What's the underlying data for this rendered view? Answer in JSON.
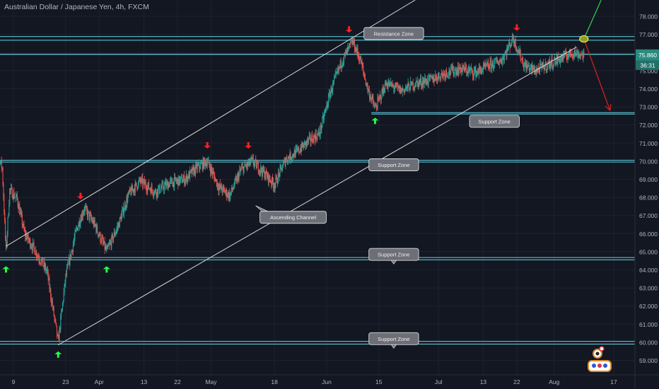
{
  "symbol_title": "Australian Dollar / Japanese Yen, 4h, FXCM",
  "colors": {
    "background": "#131722",
    "grid": "#1e2230",
    "axis_text": "#b2b5be",
    "up": "#26a69a",
    "down": "#ef5350",
    "zone_line": "#5fd7e8",
    "trend_line": "#d8d8d8",
    "up_arrow": "#22ff44",
    "down_arrow": "#ff2020",
    "projection_up": "#34d24a",
    "projection_down": "#e02020",
    "callout_fill": "#6d6f78",
    "price_badge": "#2a8a7e",
    "timer_badge": "#22706a"
  },
  "chart_data": {
    "type": "candlestick",
    "x_axis": {
      "ticks": [
        {
          "label": "9",
          "date": "2023-03-09"
        },
        {
          "label": "23",
          "date": "2023-03-23"
        },
        {
          "label": "Apr",
          "date": "2023-04-01"
        },
        {
          "label": "13",
          "date": "2023-04-13"
        },
        {
          "label": "22",
          "date": "2023-04-22"
        },
        {
          "label": "May",
          "date": "2023-05-01"
        },
        {
          "label": "18",
          "date": "2023-05-18"
        },
        {
          "label": "Jun",
          "date": "2023-06-01"
        },
        {
          "label": "15",
          "date": "2023-06-15"
        },
        {
          "label": "Jul",
          "date": "2023-07-01"
        },
        {
          "label": "13",
          "date": "2023-07-13"
        },
        {
          "label": "22",
          "date": "2023-07-22"
        },
        {
          "label": "Aug",
          "date": "2023-08-01"
        },
        {
          "label": "17",
          "date": "2023-08-17"
        }
      ]
    },
    "y_axis": {
      "range": [
        58.2,
        78.9
      ],
      "ticks": [
        "59.000",
        "60.000",
        "61.000",
        "62.000",
        "63.000",
        "64.000",
        "65.000",
        "66.000",
        "67.000",
        "68.000",
        "69.000",
        "70.000",
        "71.000",
        "72.000",
        "73.000",
        "74.000",
        "75.000",
        "76.000",
        "77.000",
        "78.000"
      ]
    },
    "last_price": "75.860",
    "countdown": "36:31",
    "price_path": [
      [
        "2023-03-03",
        71.4
      ],
      [
        "2023-03-05",
        70.3
      ],
      [
        "2023-03-06",
        69.6
      ],
      [
        "2023-03-07",
        65.0
      ],
      [
        "2023-03-08",
        68.4
      ],
      [
        "2023-03-10",
        67.9
      ],
      [
        "2023-03-12",
        66.0
      ],
      [
        "2023-03-15",
        65.0
      ],
      [
        "2023-03-18",
        63.9
      ],
      [
        "2023-03-20",
        61.3
      ],
      [
        "2023-03-21",
        60.0
      ],
      [
        "2023-03-23",
        63.6
      ],
      [
        "2023-03-26",
        66.3
      ],
      [
        "2023-03-28",
        67.4
      ],
      [
        "2023-03-31",
        66.4
      ],
      [
        "2023-04-03",
        65.0
      ],
      [
        "2023-04-06",
        66.4
      ],
      [
        "2023-04-09",
        68.2
      ],
      [
        "2023-04-12",
        68.9
      ],
      [
        "2023-04-16",
        68.3
      ],
      [
        "2023-04-20",
        68.8
      ],
      [
        "2023-04-24",
        69.0
      ],
      [
        "2023-04-27",
        69.6
      ],
      [
        "2023-04-30",
        70.0
      ],
      [
        "2023-05-03",
        68.6
      ],
      [
        "2023-05-06",
        68.1
      ],
      [
        "2023-05-09",
        69.5
      ],
      [
        "2023-05-12",
        70.0
      ],
      [
        "2023-05-15",
        69.4
      ],
      [
        "2023-05-18",
        68.7
      ],
      [
        "2023-05-21",
        70.1
      ],
      [
        "2023-05-24",
        70.5
      ],
      [
        "2023-05-27",
        71.1
      ],
      [
        "2023-05-30",
        71.5
      ],
      [
        "2023-06-02",
        73.8
      ],
      [
        "2023-06-05",
        75.5
      ],
      [
        "2023-06-08",
        76.6
      ],
      [
        "2023-06-10",
        75.6
      ],
      [
        "2023-06-12",
        74.0
      ],
      [
        "2023-06-14",
        72.9
      ],
      [
        "2023-06-17",
        74.3
      ],
      [
        "2023-06-21",
        73.9
      ],
      [
        "2023-06-25",
        74.3
      ],
      [
        "2023-06-29",
        74.5
      ],
      [
        "2023-07-03",
        74.9
      ],
      [
        "2023-07-07",
        75.1
      ],
      [
        "2023-07-11",
        74.9
      ],
      [
        "2023-07-15",
        75.3
      ],
      [
        "2023-07-18",
        75.6
      ],
      [
        "2023-07-21",
        76.8
      ],
      [
        "2023-07-24",
        75.3
      ],
      [
        "2023-07-27",
        75.0
      ],
      [
        "2023-07-31",
        75.4
      ],
      [
        "2023-08-03",
        75.7
      ],
      [
        "2023-08-06",
        76.0
      ],
      [
        "2023-08-09",
        75.86
      ]
    ],
    "levels": [
      {
        "name": "Resistance Zone",
        "from": "2023-03-01",
        "top": 76.88,
        "bottom": 76.68
      },
      {
        "name": "resistance-line",
        "from": "2023-03-01",
        "top": 75.9,
        "bottom": 75.9
      },
      {
        "name": "Support Zone",
        "from": "2023-06-13",
        "top": 72.68,
        "bottom": 72.6
      },
      {
        "name": "Support Zone",
        "from": "2023-03-01",
        "top": 70.05,
        "bottom": 69.95
      },
      {
        "name": "Support Zone",
        "from": "2023-03-01",
        "top": 64.68,
        "bottom": 64.55
      },
      {
        "name": "Support Zone",
        "from": "2023-03-01",
        "top": 60.05,
        "bottom": 59.9
      }
    ],
    "channel": {
      "lower": [
        [
          "2023-03-21",
          59.85
        ],
        [
          "2023-08-07",
          76.3
        ]
      ],
      "upper": [
        [
          "2023-03-07",
          65.3
        ],
        [
          "2023-06-07",
          76.7
        ],
        [
          "2023-07-07",
          81.0
        ]
      ]
    },
    "projections": [
      {
        "direction": "up",
        "from": [
          "2023-08-09",
          76.75
        ],
        "to": [
          "2023-08-16",
          80.0
        ]
      },
      {
        "direction": "down",
        "from": [
          "2023-08-09",
          76.75
        ],
        "to": [
          "2023-08-16",
          72.8
        ]
      }
    ],
    "pivot_marker": [
      "2023-08-09",
      76.75
    ],
    "down_arrows": [
      [
        "2023-03-27",
        67.9
      ],
      [
        "2023-04-30",
        70.7
      ],
      [
        "2023-05-11",
        70.7
      ],
      [
        "2023-06-07",
        77.1
      ],
      [
        "2023-07-22",
        77.2
      ]
    ],
    "up_arrows": [
      [
        "2023-03-07",
        64.2
      ],
      [
        "2023-03-21",
        59.5
      ],
      [
        "2023-04-03",
        64.2
      ],
      [
        "2023-06-14",
        72.4
      ]
    ],
    "annotations": [
      {
        "text": "Resistance Zone",
        "at": [
          "2023-06-19",
          77.05
        ],
        "pointer": "none"
      },
      {
        "text": "Support Zone",
        "at": [
          "2023-07-16",
          72.2
        ],
        "pointer": "none"
      },
      {
        "text": "Support Zone",
        "at": [
          "2023-06-19",
          69.8
        ],
        "pointer": "none"
      },
      {
        "text": "Ascending Channel",
        "at": [
          "2023-05-23",
          66.9
        ],
        "pointer": "up-left"
      },
      {
        "text": "Support Zone",
        "at": [
          "2023-06-19",
          64.85
        ],
        "pointer": "down"
      },
      {
        "text": "Support Zone",
        "at": [
          "2023-06-19",
          60.2
        ],
        "pointer": "down"
      }
    ]
  },
  "footer_icon": "trading-bot-logo-icon"
}
